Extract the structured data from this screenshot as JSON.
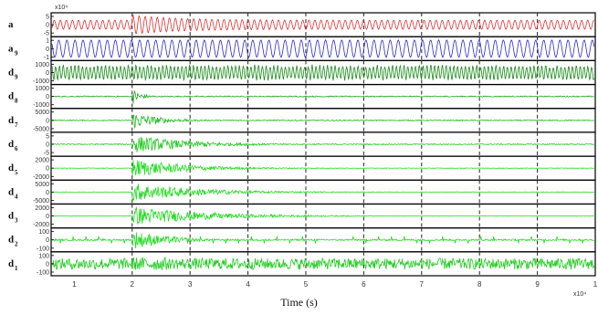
{
  "chart_data": {
    "type": "line",
    "xlabel": "Time (s)",
    "x_tick_labels": [
      "1",
      "2",
      "3",
      "4",
      "5",
      "6",
      "7",
      "8",
      "9",
      "1"
    ],
    "x_exponent_top": "x10⁴",
    "x_exponent_bottom": "x10⁴",
    "dashed_gridlines": true,
    "panels": [
      {
        "name": "a",
        "sub": "",
        "color": "#e03030",
        "ytick_labels": [
          "5",
          "0",
          "-5"
        ],
        "behaviour": "sinusoid; burst of larger amplitude after x=2, decaying back",
        "base_amplitude": 0.45,
        "burst_amplitude": 0.95
      },
      {
        "name": "a",
        "sub": "9",
        "color": "#2a2ad0",
        "ytick_labels": [
          "1",
          "0",
          "-1"
        ],
        "behaviour": "steady low-frequency oscillation",
        "base_amplitude": 0.85
      },
      {
        "name": "d",
        "sub": "9",
        "color": "#1a8a1a",
        "ytick_labels": [
          "1000",
          "0",
          "-1000"
        ],
        "behaviour": "steady dense oscillation",
        "base_amplitude": 0.8
      },
      {
        "name": "d",
        "sub": "8",
        "color": "#22aa22",
        "ytick_labels": [
          "1000",
          "0",
          "-1000"
        ],
        "behaviour": "flat with short transient at x=2",
        "base_amplitude": 0.05,
        "burst_amplitude": 0.8
      },
      {
        "name": "d",
        "sub": "7",
        "color": "#22bb22",
        "ytick_labels": [
          "5000",
          "0",
          "-5000"
        ],
        "behaviour": "flat with decaying transient at x=2",
        "base_amplitude": 0.05,
        "burst_amplitude": 0.9
      },
      {
        "name": "d",
        "sub": "6",
        "color": "#22cc22",
        "ytick_labels": [
          "5",
          "0",
          "-5"
        ],
        "behaviour": "flat with long decaying transient at x=2",
        "base_amplitude": 0.05,
        "burst_amplitude": 0.9
      },
      {
        "name": "d",
        "sub": "5",
        "color": "#22dd22",
        "ytick_labels": [
          "2000",
          "0",
          "-2000"
        ],
        "behaviour": "decaying transient after x=2",
        "base_amplitude": 0.02,
        "burst_amplitude": 0.95
      },
      {
        "name": "d",
        "sub": "4",
        "color": "#22dd22",
        "ytick_labels": [
          "5000",
          "0",
          "-5000"
        ],
        "behaviour": "decaying transient after x=2",
        "base_amplitude": 0.02,
        "burst_amplitude": 0.95
      },
      {
        "name": "d",
        "sub": "3",
        "color": "#22dd22",
        "ytick_labels": [
          "2000",
          "0",
          "-2000"
        ],
        "behaviour": "decaying transient after x=2",
        "base_amplitude": 0.02,
        "burst_amplitude": 0.95
      },
      {
        "name": "d",
        "sub": "2",
        "color": "#22dd22",
        "ytick_labels": [
          "100",
          "0",
          "-100"
        ],
        "behaviour": "decaying transient after x=2 with periodic spikes",
        "base_amplitude": 0.08,
        "burst_amplitude": 0.95
      },
      {
        "name": "d",
        "sub": "1",
        "color": "#22cc22",
        "ytick_labels": [
          "100",
          "0",
          "-100"
        ],
        "behaviour": "dense noise throughout",
        "base_amplitude": 0.55,
        "burst_amplitude": 0.65
      }
    ],
    "xlim": [
      0.6,
      10
    ]
  }
}
